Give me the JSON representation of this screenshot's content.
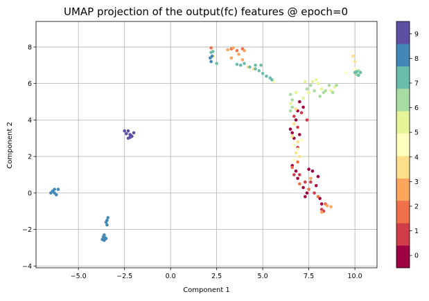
{
  "chart_data": {
    "type": "scatter",
    "title": "UMAP projection of the output(fc) features @ epoch=0",
    "xlabel": "Component 1",
    "ylabel": "Component 2",
    "xlim": [
      -7.3,
      11.2
    ],
    "ylim": [
      -4.1,
      9.4
    ],
    "x_ticks": [
      -5.0,
      -2.5,
      0.0,
      2.5,
      5.0,
      7.5,
      10.0
    ],
    "x_tick_labels": [
      "−5.0",
      "−2.5",
      "0.0",
      "2.5",
      "5.0",
      "7.5",
      "10.0"
    ],
    "y_ticks": [
      -4,
      -2,
      0,
      2,
      4,
      6,
      8
    ],
    "y_tick_labels": [
      "−4",
      "−2",
      "0",
      "2",
      "4",
      "6",
      "8"
    ],
    "grid": true,
    "colorbar": {
      "labels": [
        "0",
        "1",
        "2",
        "3",
        "4",
        "5",
        "6",
        "7",
        "8",
        "9"
      ],
      "colors": [
        "#9e0142",
        "#d13c4b",
        "#f0704a",
        "#fca55d",
        "#fee08b",
        "#ffffbe",
        "#e6f598",
        "#a9dca3",
        "#69bda9",
        "#4288b5",
        "#5e4fa2"
      ],
      "bounds": [
        -0.5,
        9.5
      ]
    },
    "series": [
      {
        "c": 0,
        "color": "#9e0142",
        "points": [
          [
            6.5,
            3.5
          ],
          [
            6.6,
            3.3
          ],
          [
            6.7,
            3.0
          ],
          [
            6.8,
            4.0
          ],
          [
            6.9,
            4.5
          ],
          [
            7.0,
            3.2
          ],
          [
            7.2,
            4.7
          ],
          [
            7.0,
            5.0
          ],
          [
            6.6,
            1.5
          ],
          [
            6.8,
            1.2
          ],
          [
            7.2,
            0.3
          ],
          [
            7.4,
            0.0
          ],
          [
            7.7,
            1.2
          ],
          [
            7.9,
            0.4
          ],
          [
            8.1,
            -0.3
          ],
          [
            8.2,
            -0.6
          ],
          [
            8.0,
            0.9
          ],
          [
            7.3,
            -0.2
          ],
          [
            6.9,
            0.8
          ],
          [
            7.5,
            1.3
          ]
        ]
      },
      {
        "c": 1,
        "color": "#d13c4b",
        "points": [
          [
            6.7,
            4.2
          ],
          [
            6.9,
            3.6
          ],
          [
            7.1,
            4.4
          ],
          [
            7.0,
            1.0
          ],
          [
            7.3,
            0.6
          ],
          [
            7.6,
            0.6
          ],
          [
            7.8,
            0.0
          ],
          [
            8.2,
            -0.9
          ],
          [
            8.3,
            -1.0
          ],
          [
            6.7,
            1.0
          ],
          [
            6.9,
            2.5
          ],
          [
            7.4,
            4.0
          ]
        ]
      },
      {
        "c": 2,
        "color": "#f0704a",
        "points": [
          [
            7.0,
            0.5
          ],
          [
            7.5,
            0.2
          ],
          [
            8.0,
            -0.2
          ],
          [
            8.4,
            -0.6
          ],
          [
            6.6,
            1.4
          ],
          [
            3.3,
            7.9
          ],
          [
            3.6,
            7.8
          ],
          [
            3.9,
            7.9
          ],
          [
            2.2,
            7.95
          ],
          [
            6.9,
            1.7
          ]
        ]
      },
      {
        "c": 3,
        "color": "#fca55d",
        "points": [
          [
            3.1,
            7.85
          ],
          [
            3.4,
            7.95
          ],
          [
            3.7,
            7.6
          ],
          [
            3.9,
            7.3
          ],
          [
            4.0,
            7.8
          ],
          [
            3.3,
            7.4
          ],
          [
            8.5,
            -0.7
          ],
          [
            8.7,
            -0.75
          ],
          [
            8.2,
            -1.05
          ],
          [
            7.6,
            0.8
          ]
        ]
      },
      {
        "c": 4,
        "color": "#fee08b",
        "points": [
          [
            6.7,
            3.8
          ],
          [
            6.8,
            2.2
          ],
          [
            6.9,
            2.8
          ],
          [
            7.0,
            2.0
          ],
          [
            6.6,
            3.1
          ],
          [
            4.2,
            6.9
          ],
          [
            4.5,
            6.8
          ],
          [
            2.3,
            7.5
          ],
          [
            9.9,
            7.5
          ],
          [
            10.0,
            7.2
          ],
          [
            6.8,
            4.6
          ]
        ]
      },
      {
        "c": 5,
        "color": "#ffffbe",
        "points": [
          [
            6.7,
            2.6
          ],
          [
            6.9,
            2.4
          ],
          [
            6.7,
            1.8
          ],
          [
            5.6,
            6.1
          ],
          [
            9.5,
            6.6
          ],
          [
            10.0,
            6.8
          ],
          [
            2.3,
            7.8
          ],
          [
            7.1,
            2.9
          ]
        ]
      },
      {
        "c": 6,
        "color": "#e6f598",
        "points": [
          [
            7.7,
            6.1
          ],
          [
            7.9,
            6.2
          ],
          [
            8.0,
            6.0
          ],
          [
            8.2,
            5.7
          ],
          [
            7.5,
            5.5
          ],
          [
            7.2,
            5.2
          ],
          [
            6.8,
            5.5
          ],
          [
            7.3,
            6.1
          ],
          [
            8.7,
            5.6
          ],
          [
            8.9,
            5.8
          ],
          [
            6.5,
            4.9
          ]
        ]
      },
      {
        "c": 7,
        "color": "#a9dca3",
        "points": [
          [
            8.1,
            5.3
          ],
          [
            8.4,
            5.6
          ],
          [
            8.6,
            5.9
          ],
          [
            9.0,
            5.9
          ],
          [
            8.8,
            5.5
          ],
          [
            7.6,
            5.9
          ],
          [
            7.4,
            5.7
          ],
          [
            6.5,
            5.4
          ],
          [
            6.6,
            4.7
          ],
          [
            6.5,
            4.5
          ],
          [
            10.1,
            6.5
          ],
          [
            10.2,
            6.7
          ],
          [
            6.6,
            5.1
          ],
          [
            7.8,
            5.6
          ],
          [
            8.3,
            5.5
          ]
        ]
      },
      {
        "c": 8,
        "color": "#69bda9",
        "points": [
          [
            4.0,
            7.1
          ],
          [
            4.3,
            6.9
          ],
          [
            4.6,
            6.8
          ],
          [
            4.8,
            6.7
          ],
          [
            5.0,
            6.55
          ],
          [
            5.2,
            6.4
          ],
          [
            5.4,
            6.3
          ],
          [
            5.5,
            6.2
          ],
          [
            3.8,
            7.0
          ],
          [
            4.6,
            7.0
          ],
          [
            4.9,
            7.0
          ],
          [
            10.0,
            6.6
          ],
          [
            10.3,
            6.6
          ],
          [
            10.2,
            6.45
          ],
          [
            2.2,
            7.7
          ],
          [
            2.3,
            7.75
          ],
          [
            2.5,
            7.1
          ],
          [
            3.6,
            7.05
          ],
          [
            10.1,
            6.65
          ]
        ]
      },
      {
        "c": 9,
        "color": "#4288b5",
        "points": [
          [
            -6.4,
            0.1
          ],
          [
            -6.3,
            0.2
          ],
          [
            -6.2,
            -0.1
          ],
          [
            -6.1,
            0.2
          ],
          [
            -6.5,
            0.0
          ],
          [
            -6.3,
            0.0
          ],
          [
            -3.4,
            -1.35
          ],
          [
            -3.45,
            -1.5
          ],
          [
            -3.5,
            -1.6
          ],
          [
            -3.45,
            -1.75
          ],
          [
            -3.6,
            -2.3
          ],
          [
            -3.55,
            -2.45
          ],
          [
            -3.6,
            -2.6
          ],
          [
            -3.7,
            -2.55
          ],
          [
            -3.5,
            -2.5
          ],
          [
            -3.65,
            -2.4
          ],
          [
            2.15,
            7.4
          ],
          [
            2.2,
            7.2
          ],
          [
            2.25,
            7.5
          ]
        ]
      },
      {
        "c": 10,
        "color": "#5e4fa2",
        "points": [
          [
            -2.5,
            3.4
          ],
          [
            -2.3,
            3.4
          ],
          [
            -2.2,
            3.2
          ],
          [
            -2.1,
            3.1
          ],
          [
            -2.3,
            3.0
          ],
          [
            -2.0,
            3.3
          ],
          [
            -2.2,
            3.05
          ],
          [
            -2.4,
            3.25
          ],
          [
            -2.15,
            3.15
          ]
        ]
      }
    ]
  }
}
